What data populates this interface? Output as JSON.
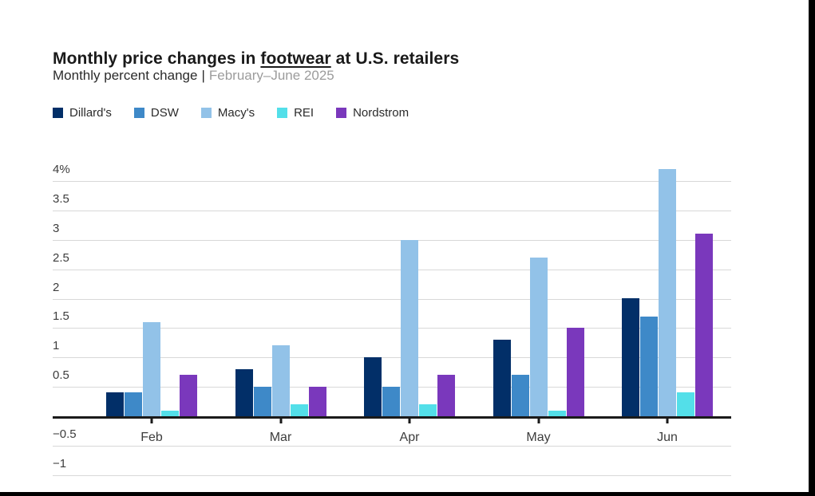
{
  "header": {
    "title_prefix": "Monthly price changes in ",
    "title_underlined": "footwear",
    "title_suffix": " at U.S. retailers",
    "subtitle_label": "Monthly percent change",
    "subtitle_separator": "|",
    "subtitle_period": "February–June 2025"
  },
  "frame_color": "#000000",
  "chart_data": {
    "type": "bar",
    "title": "Monthly price changes in footwear at U.S. retailers",
    "subtitle": "Monthly percent change | February–June 2025",
    "xlabel": "",
    "ylabel": "Monthly percent change (%)",
    "categories": [
      "Feb",
      "Mar",
      "Apr",
      "May",
      "Jun"
    ],
    "series": [
      {
        "name": "Dillard's",
        "color": "#022f68",
        "values": [
          0.4,
          0.8,
          1.0,
          1.3,
          2.0
        ]
      },
      {
        "name": "DSW",
        "color": "#3e89c8",
        "values": [
          0.4,
          0.5,
          0.5,
          0.7,
          1.7
        ]
      },
      {
        "name": "Macy's",
        "color": "#92c2e8",
        "values": [
          1.6,
          1.2,
          3.0,
          2.7,
          4.2
        ]
      },
      {
        "name": "REI",
        "color": "#53dfe9",
        "values": [
          0.1,
          0.2,
          0.2,
          0.1,
          0.4
        ]
      },
      {
        "name": "Nordstrom",
        "color": "#7a38bc",
        "values": [
          0.7,
          0.5,
          0.7,
          1.5,
          3.1
        ]
      }
    ],
    "y_axis": {
      "min": -1,
      "max": 4.2,
      "grid_step": 0.5,
      "ticks": [
        {
          "label": "4%",
          "value": 4
        },
        {
          "label": "3.5",
          "value": 3.5
        },
        {
          "label": "3",
          "value": 3
        },
        {
          "label": "2.5",
          "value": 2.5
        },
        {
          "label": "2",
          "value": 2
        },
        {
          "label": "1.5",
          "value": 1.5
        },
        {
          "label": "1",
          "value": 1
        },
        {
          "label": "0.5",
          "value": 0.5
        },
        {
          "label": "−0.5",
          "value": -0.5
        },
        {
          "label": "−1",
          "value": -1
        }
      ]
    },
    "grid": true,
    "legend_position": "top-left",
    "baseline_color": "#1a1a1a",
    "gridline_color": "#d8d8d8"
  }
}
